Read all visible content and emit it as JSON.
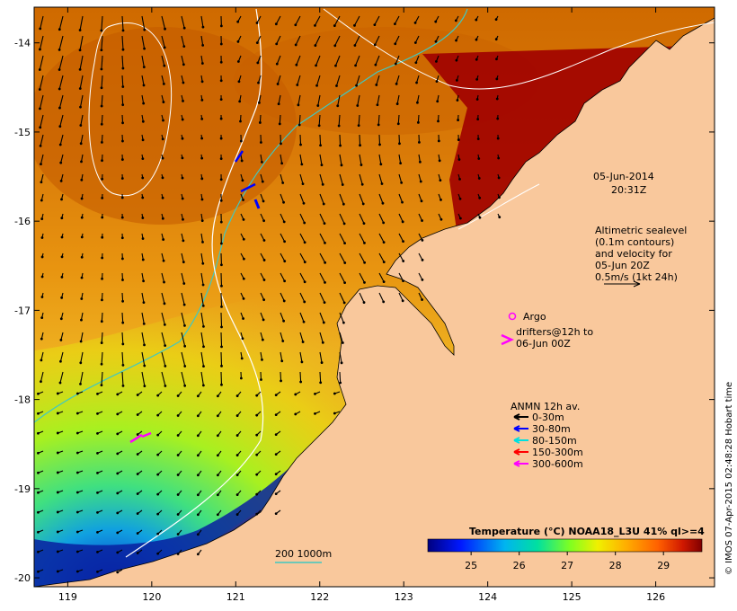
{
  "map": {
    "lon_range": [
      118.6,
      126.7
    ],
    "lat_range": [
      -20.1,
      -13.6
    ],
    "lon_ticks": [
      119,
      120,
      121,
      122,
      123,
      124,
      125,
      126
    ],
    "lat_ticks": [
      -14,
      -15,
      -16,
      -17,
      -18,
      -19,
      -20
    ],
    "lon_tick_labels": [
      "119",
      "120",
      "121",
      "122",
      "123",
      "124",
      "125",
      "126"
    ],
    "lat_tick_labels": [
      "-14",
      "-15",
      "-16",
      "-17",
      "-18",
      "-19",
      "-20"
    ]
  },
  "annotations": {
    "date": "05-Jun-2014",
    "time": "20:31Z",
    "altimetry_lines": [
      "Altimetric sealevel",
      "(0.1m contours)",
      "and velocity for",
      "05-Jun 20Z",
      "0.5m/s (1kt 24h)"
    ],
    "argo_label": "Argo",
    "drifter_line1": "drifters@12h to",
    "drifter_line2": "06-Jun 00Z",
    "anmn_title": "ANMN 12h av.",
    "anmn_items": [
      {
        "label": "0-30m",
        "color": "#000000"
      },
      {
        "label": "30-80m",
        "color": "#0000ff"
      },
      {
        "label": "80-150m",
        "color": "#00e0e0"
      },
      {
        "label": "150-300m",
        "color": "#ff0000"
      },
      {
        "label": "300-600m",
        "color": "#ff00ff"
      }
    ],
    "isobath_label": "200  1000m",
    "credit": "© IMOS 07-Apr-2015 02:48:28 Hobart time"
  },
  "colorbar": {
    "title": "Temperature (°C) NOAA18_L3U 41% ql>=4",
    "ticks": [
      25,
      26,
      27,
      28,
      29
    ],
    "tick_labels": [
      "25",
      "26",
      "27",
      "28",
      "29"
    ],
    "range": [
      24.1,
      29.8
    ]
  },
  "colors": {
    "land": "#f9c89c",
    "argo": "#ff00ff",
    "isobath_200": "#40c8c0",
    "isobath_1000": "#ffffff"
  }
}
